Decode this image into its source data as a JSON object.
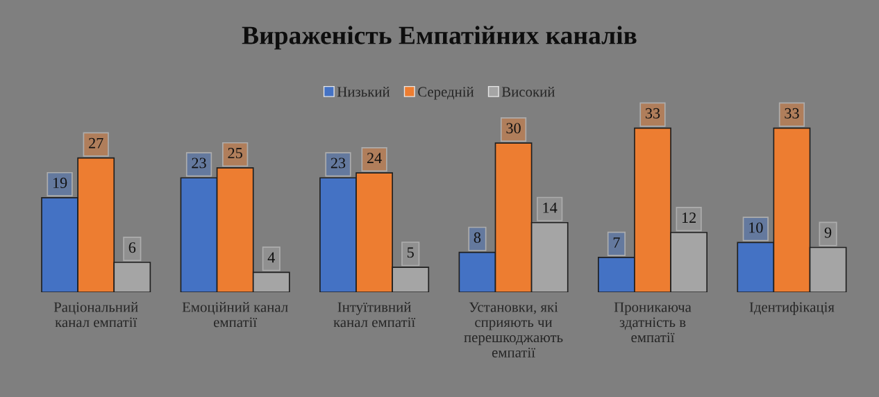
{
  "chart_data": {
    "type": "bar",
    "title": "Вираженість Емпатійних каналів",
    "categories": [
      "Раціональний\nканал емпатії",
      "Емоційний канал\nемпатії",
      "Інтуїтивний\nканал емпатії",
      "Установки, які\nсприяють чи\nперешкоджають\nемпатії",
      "Проникаюча\nздатність в\nемпатії",
      "Ідентифікація"
    ],
    "series": [
      {
        "name": "Низький",
        "color": "#4472c4",
        "values": [
          19,
          23,
          23,
          8,
          7,
          10
        ]
      },
      {
        "name": "Середній",
        "color": "#ed7d31",
        "values": [
          27,
          25,
          24,
          30,
          33,
          33
        ]
      },
      {
        "name": "Високий",
        "color": "#a5a5a5",
        "values": [
          6,
          4,
          5,
          14,
          12,
          9
        ]
      }
    ],
    "data_labels": true,
    "legend": "top",
    "grid": false
  }
}
